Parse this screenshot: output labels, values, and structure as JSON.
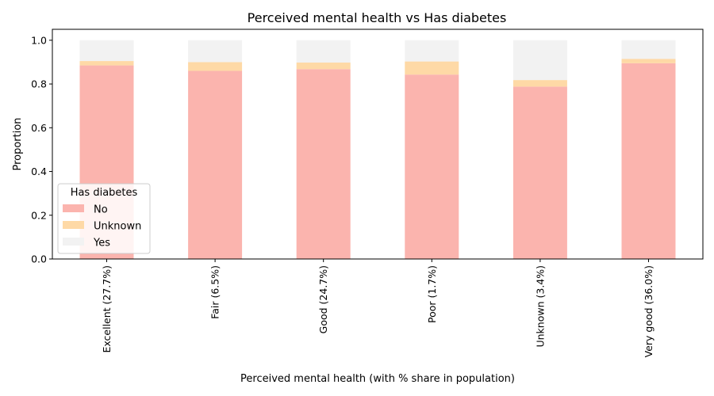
{
  "chart_data": {
    "type": "bar",
    "stacked": true,
    "title": "Perceived mental health  vs Has diabetes",
    "xlabel": "Perceived mental health  (with % share in population)",
    "ylabel": "Proportion",
    "ylim": [
      0,
      1.05
    ],
    "yticks": [
      "0.0",
      "0.2",
      "0.4",
      "0.6",
      "0.8",
      "1.0"
    ],
    "categories": [
      "Excellent (27.7%)",
      "Fair (6.5%)",
      "Good (24.7%)",
      "Poor (1.7%)",
      "Unknown (3.4%)",
      "Very good (36.0%)"
    ],
    "series": [
      {
        "name": "No",
        "color": "#fbb4ae",
        "values": [
          0.885,
          0.86,
          0.868,
          0.843,
          0.788,
          0.895
        ]
      },
      {
        "name": "Unknown",
        "color": "#fed9a6",
        "values": [
          0.02,
          0.04,
          0.03,
          0.06,
          0.03,
          0.02
        ]
      },
      {
        "name": "Yes",
        "color": "#f2f2f2",
        "values": [
          0.095,
          0.1,
          0.102,
          0.097,
          0.182,
          0.085
        ]
      }
    ],
    "legend": {
      "title": "Has diabetes",
      "placement": "lower-left"
    },
    "grid": false
  }
}
